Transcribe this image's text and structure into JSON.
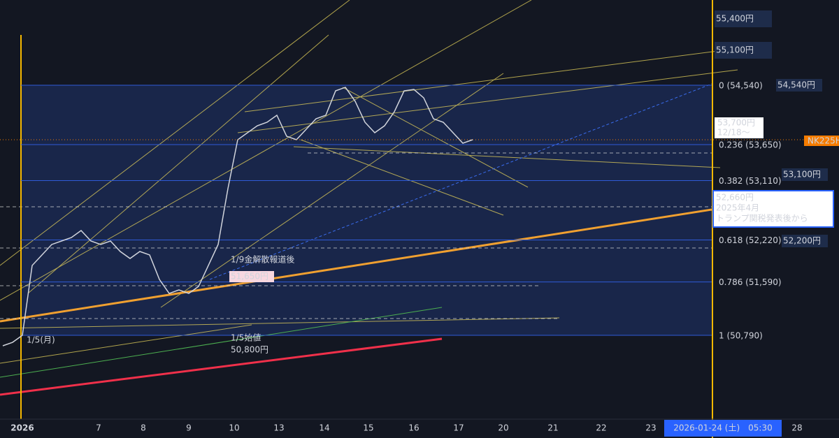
{
  "chart_data": {
    "type": "line",
    "categories": [
      null,
      null,
      null,
      null,
      null,
      null,
      null,
      null,
      null,
      null,
      null,
      null,
      null,
      null,
      null,
      null,
      null,
      null,
      null,
      null,
      null,
      null,
      null,
      null,
      null,
      null,
      null,
      null,
      null,
      null,
      null,
      null,
      null,
      null,
      null,
      null,
      null,
      null,
      null,
      null,
      null,
      null,
      null,
      null,
      null,
      null,
      null,
      null,
      null
    ],
    "series": [
      {
        "name": "NK225H",
        "color": "#d1d4dc",
        "values": [
          50633,
          50685,
          50790,
          51837,
          51995,
          52152,
          52204,
          52256,
          52361,
          52204,
          52152,
          52204,
          52047,
          51942,
          52047,
          51995,
          51628,
          51418,
          51471,
          51418,
          51523,
          51837,
          52152,
          52990,
          53723,
          53828,
          53932,
          53985,
          54090,
          53775,
          53723,
          53880,
          54037,
          54090,
          54456,
          54509,
          54299,
          53985,
          53828,
          53932,
          54142,
          54456,
          54477,
          54351,
          54037,
          53985,
          53828,
          53671,
          53723
        ]
      }
    ],
    "ylim": [
      49533,
      55818
    ],
    "fib_levels": [
      {
        "value": 54540,
        "label": "0 (54,540)"
      },
      {
        "value": 53650,
        "label": "0.236 (53,650)"
      },
      {
        "value": 53110,
        "label": "0.382 (53,110)"
      },
      {
        "value": 52220,
        "label": "0.618 (52,220)"
      },
      {
        "value": 51590,
        "label": "0.786 (51,590)"
      },
      {
        "value": 50790,
        "label": "1 (50,790)"
      }
    ],
    "x_axis_labels": [
      "2026",
      "7",
      "8",
      "9",
      "10",
      "13",
      "14",
      "15",
      "16",
      "17",
      "20",
      "21",
      "22",
      "23",
      "28"
    ],
    "current_time_label": "2026-01-24 (土)　05:30",
    "price_labels": [
      "55,400円",
      "55,100円",
      "54,540円",
      "53,100円",
      "52,200円"
    ],
    "box_53700": [
      "53,700円",
      "12/18〜"
    ],
    "box_52660": [
      "52,660円",
      "2025年4月",
      "トランプ関税発表後から"
    ],
    "annotations": [
      "1/9金解散報道後",
      "51,650円",
      "1/5(月)",
      "1/5始値",
      "50,800円"
    ]
  }
}
